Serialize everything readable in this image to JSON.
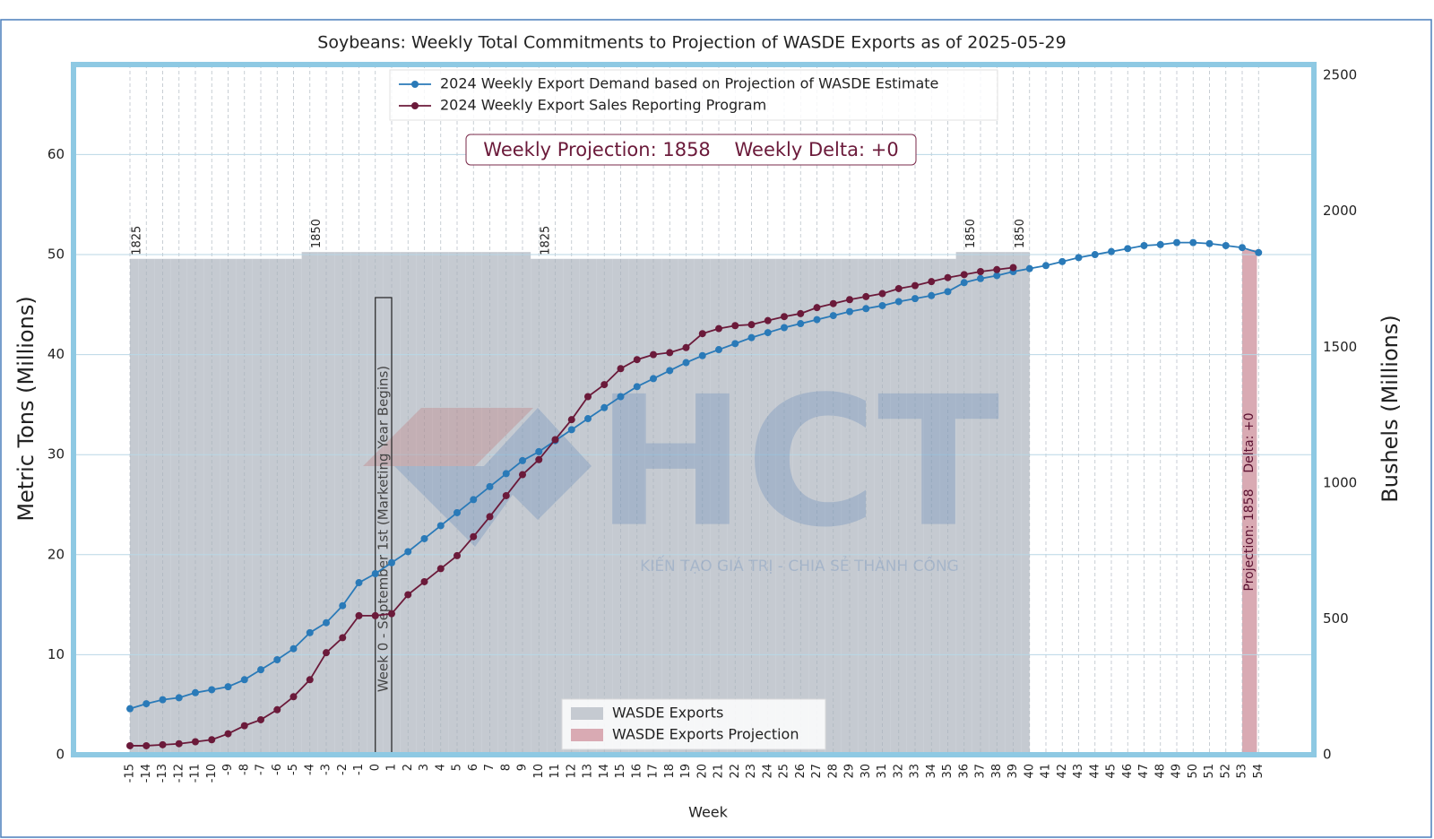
{
  "chart_data": {
    "type": "line",
    "title": "Soybeans: Weekly Total Commitments to Projection of WASDE Exports as of 2025-05-29",
    "xlabel": "Week",
    "ylabel": "Metric Tons (Millions)",
    "y2label": "Bushels (Millions)",
    "categories": [
      "-15",
      "-14",
      "-13",
      "-12",
      "-11",
      "-10",
      "-9",
      "-8",
      "-7",
      "-6",
      "-5",
      "-4",
      "-3",
      "-2",
      "-1",
      "0",
      "1",
      "2",
      "3",
      "4",
      "5",
      "6",
      "7",
      "8",
      "9",
      "10",
      "11",
      "12",
      "13",
      "14",
      "15",
      "16",
      "17",
      "18",
      "19",
      "20",
      "21",
      "22",
      "23",
      "24",
      "25",
      "26",
      "27",
      "28",
      "29",
      "30",
      "31",
      "32",
      "33",
      "34",
      "35",
      "36",
      "37",
      "38",
      "39",
      "40",
      "41",
      "42",
      "43",
      "44",
      "45",
      "46",
      "47",
      "48",
      "49",
      "50",
      "51",
      "52",
      "53",
      "54"
    ],
    "ylim": [
      0,
      69
    ],
    "yticks": [
      0,
      10,
      20,
      30,
      40,
      50,
      60
    ],
    "y2lim": [
      0,
      2540
    ],
    "y2ticks": [
      0,
      500,
      1000,
      1500,
      2000,
      2500
    ],
    "grid": true,
    "legend": "upper center",
    "bar_legend": "lower center",
    "series": [
      {
        "name": "2024 Weekly Export Demand based on Projection of WASDE Estimate",
        "type": "line",
        "axis": "y",
        "color": "#2a7ab8",
        "values": [
          4.6,
          5.1,
          5.5,
          5.7,
          6.2,
          6.5,
          6.8,
          7.5,
          8.5,
          9.5,
          10.6,
          12.2,
          13.2,
          14.9,
          17.2,
          18.1,
          19.2,
          20.3,
          21.6,
          22.9,
          24.2,
          25.5,
          26.8,
          28.1,
          29.4,
          30.3,
          31.4,
          32.5,
          33.6,
          34.7,
          35.8,
          36.8,
          37.6,
          38.4,
          39.2,
          39.9,
          40.5,
          41.1,
          41.7,
          42.2,
          42.7,
          43.1,
          43.5,
          43.9,
          44.3,
          44.6,
          44.9,
          45.3,
          45.6,
          45.9,
          46.3,
          47.2,
          47.6,
          47.9,
          48.3,
          48.6,
          48.9,
          49.3,
          49.7,
          50.0,
          50.3,
          50.6,
          50.9,
          51.0,
          51.2,
          51.2,
          51.1,
          50.9,
          50.7,
          50.2
        ]
      },
      {
        "name": "2024 Weekly Export Sales Reporting Program",
        "type": "line",
        "axis": "y",
        "color": "#6b1a3a",
        "values": [
          0.9,
          0.9,
          1.0,
          1.1,
          1.3,
          1.5,
          2.1,
          2.9,
          3.5,
          4.5,
          5.8,
          7.5,
          10.2,
          11.7,
          13.9,
          13.9,
          14.1,
          16.0,
          17.3,
          18.6,
          19.9,
          21.8,
          23.8,
          25.9,
          28.0,
          29.5,
          31.5,
          33.5,
          35.8,
          37.0,
          38.6,
          39.5,
          40.0,
          40.2,
          40.7,
          42.1,
          42.6,
          42.9,
          43.0,
          43.4,
          43.8,
          44.1,
          44.7,
          45.1,
          45.5,
          45.8,
          46.1,
          46.6,
          46.9,
          47.3,
          47.7,
          48.0,
          48.3,
          48.5,
          48.7,
          null,
          null,
          null,
          null,
          null,
          null,
          null,
          null,
          null,
          null,
          null,
          null,
          null,
          null,
          null
        ]
      },
      {
        "name": "WASDE Exports",
        "type": "bar",
        "axis": "y2",
        "color": "#c5cad1",
        "values": [
          1825,
          1825,
          1825,
          1825,
          1825,
          1825,
          1825,
          1825,
          1825,
          1825,
          1825,
          1850,
          1850,
          1850,
          1850,
          1850,
          1850,
          1850,
          1850,
          1850,
          1850,
          1850,
          1850,
          1850,
          1850,
          1825,
          1825,
          1825,
          1825,
          1825,
          1825,
          1825,
          1825,
          1825,
          1825,
          1825,
          1825,
          1825,
          1825,
          1825,
          1825,
          1825,
          1825,
          1825,
          1825,
          1825,
          1825,
          1825,
          1825,
          1825,
          1825,
          1850,
          1850,
          1850,
          1850,
          1850,
          null,
          null,
          null,
          null,
          null,
          null,
          null,
          null,
          null,
          null,
          null,
          null,
          null,
          null
        ],
        "value_labels": [
          "1825",
          null,
          null,
          null,
          null,
          null,
          null,
          null,
          null,
          null,
          null,
          "1850",
          null,
          null,
          null,
          null,
          null,
          null,
          null,
          null,
          null,
          null,
          null,
          null,
          null,
          "1825",
          null,
          null,
          null,
          null,
          null,
          null,
          null,
          null,
          null,
          null,
          null,
          null,
          null,
          null,
          null,
          null,
          null,
          null,
          null,
          null,
          null,
          null,
          null,
          null,
          null,
          "1850",
          null,
          null,
          "1850",
          null,
          null,
          null,
          null,
          null,
          null,
          null,
          null,
          null,
          null,
          null,
          null,
          null,
          null,
          null
        ]
      },
      {
        "name": "WASDE Exports Projection",
        "type": "bar",
        "axis": "y2",
        "color": "#d9aab3",
        "values": [
          null,
          null,
          null,
          null,
          null,
          null,
          null,
          null,
          null,
          null,
          null,
          null,
          null,
          null,
          null,
          null,
          null,
          null,
          null,
          null,
          null,
          null,
          null,
          null,
          null,
          null,
          null,
          null,
          null,
          null,
          null,
          null,
          null,
          null,
          null,
          null,
          null,
          null,
          null,
          null,
          null,
          null,
          null,
          null,
          null,
          null,
          null,
          null,
          null,
          null,
          null,
          null,
          null,
          null,
          null,
          null,
          null,
          null,
          null,
          null,
          null,
          null,
          null,
          null,
          null,
          null,
          null,
          null,
          1858,
          null
        ]
      }
    ],
    "info_box": "Weekly Projection: 1858    Weekly Delta: +0",
    "projection_label": "Projection: 1858    Delta: +0",
    "week0_annotation": "Week 0 - September 1st (Marketing Year Begins)",
    "watermark": {
      "logo": "HCT",
      "tagline": "KIẾN TẠO GIÁ TRỊ - CHIA SẺ THÀNH CÔNG"
    }
  }
}
